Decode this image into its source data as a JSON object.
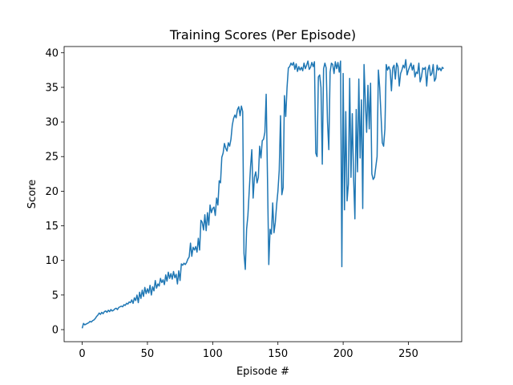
{
  "chart_data": {
    "type": "line",
    "title": "Training Scores (Per Episode)",
    "xlabel": "Episode #",
    "ylabel": "Score",
    "color": "#1f77b4",
    "xlim": [
      -13.85,
      290.85
    ],
    "ylim": [
      -1.74,
      40.9
    ],
    "xticks": [
      0,
      50,
      100,
      150,
      200,
      250
    ],
    "yticks": [
      0,
      5,
      10,
      15,
      20,
      25,
      30,
      35,
      40
    ],
    "grid": false,
    "x": [
      0,
      1,
      2,
      3,
      4,
      5,
      6,
      7,
      8,
      9,
      10,
      11,
      12,
      13,
      14,
      15,
      16,
      17,
      18,
      19,
      20,
      21,
      22,
      23,
      24,
      25,
      26,
      27,
      28,
      29,
      30,
      31,
      32,
      33,
      34,
      35,
      36,
      37,
      38,
      39,
      40,
      41,
      42,
      43,
      44,
      45,
      46,
      47,
      48,
      49,
      50,
      51,
      52,
      53,
      54,
      55,
      56,
      57,
      58,
      59,
      60,
      61,
      62,
      63,
      64,
      65,
      66,
      67,
      68,
      69,
      70,
      71,
      72,
      73,
      74,
      75,
      76,
      77,
      78,
      79,
      80,
      81,
      82,
      83,
      84,
      85,
      86,
      87,
      88,
      89,
      90,
      91,
      92,
      93,
      94,
      95,
      96,
      97,
      98,
      99,
      100,
      101,
      102,
      103,
      104,
      105,
      106,
      107,
      108,
      109,
      110,
      111,
      112,
      113,
      114,
      115,
      116,
      117,
      118,
      119,
      120,
      121,
      122,
      123,
      124,
      125,
      126,
      127,
      128,
      129,
      130,
      131,
      132,
      133,
      134,
      135,
      136,
      137,
      138,
      139,
      140,
      141,
      142,
      143,
      144,
      145,
      146,
      147,
      148,
      149,
      150,
      151,
      152,
      153,
      154,
      155,
      156,
      157,
      158,
      159,
      160,
      161,
      162,
      163,
      164,
      165,
      166,
      167,
      168,
      169,
      170,
      171,
      172,
      173,
      174,
      175,
      176,
      177,
      178,
      179,
      180,
      181,
      182,
      183,
      184,
      185,
      186,
      187,
      188,
      189,
      190,
      191,
      192,
      193,
      194,
      195,
      196,
      197,
      198,
      199,
      200,
      201,
      202,
      203,
      204,
      205,
      206,
      207,
      208,
      209,
      210,
      211,
      212,
      213,
      214,
      215,
      216,
      217,
      218,
      219,
      220,
      221,
      222,
      223,
      224,
      225,
      226,
      227,
      228,
      229,
      230,
      231,
      232,
      233,
      234,
      235,
      236,
      237,
      238,
      239,
      240,
      241,
      242,
      243,
      244,
      245,
      246,
      247,
      248,
      249,
      250,
      251,
      252,
      253,
      254,
      255,
      256,
      257,
      258,
      259,
      260,
      261,
      262,
      263,
      264,
      265,
      266,
      267,
      268,
      269,
      270,
      271,
      272,
      273,
      274,
      275,
      276,
      277
    ],
    "values": [
      0.2,
      0.9,
      0.7,
      0.8,
      0.9,
      1.0,
      1.2,
      1.1,
      1.3,
      1.4,
      1.6,
      1.9,
      2.1,
      2.4,
      2.2,
      2.5,
      2.3,
      2.6,
      2.7,
      2.5,
      2.8,
      2.6,
      2.9,
      2.7,
      2.8,
      3.0,
      3.1,
      2.9,
      3.2,
      3.3,
      3.4,
      3.3,
      3.6,
      3.5,
      3.8,
      3.7,
      4.0,
      3.9,
      4.3,
      3.8,
      4.6,
      4.2,
      5.0,
      3.9,
      5.4,
      4.5,
      5.7,
      4.8,
      6.1,
      5.2,
      5.9,
      5.3,
      6.4,
      5.0,
      6.2,
      5.6,
      7.1,
      6.0,
      6.6,
      6.3,
      7.4,
      6.8,
      7.2,
      6.5,
      7.9,
      7.0,
      8.3,
      7.4,
      8.1,
      7.3,
      8.4,
      7.5,
      8.0,
      6.6,
      8.5,
      7.1,
      9.5,
      9.3,
      9.6,
      9.4,
      9.7,
      10.2,
      10.5,
      12.5,
      10.6,
      11.9,
      11.5,
      12.0,
      11.2,
      13.2,
      11.5,
      15.8,
      15.5,
      14.4,
      16.6,
      14.3,
      16.9,
      15.1,
      18.0,
      16.9,
      17.5,
      17.7,
      16.5,
      19.0,
      18.0,
      21.5,
      21.2,
      24.9,
      25.5,
      26.9,
      26.2,
      25.8,
      27.0,
      26.5,
      27.5,
      29.5,
      30.5,
      31.0,
      30.6,
      31.8,
      32.2,
      30.9,
      32.3,
      31.5,
      11.0,
      8.7,
      14.5,
      16.5,
      20.0,
      23.5,
      26.0,
      19.0,
      22.0,
      22.8,
      21.2,
      22.0,
      26.5,
      24.8,
      27.3,
      27.5,
      28.5,
      34.0,
      22.0,
      9.4,
      14.5,
      13.8,
      18.3,
      14.0,
      15.5,
      18.0,
      20.0,
      23.0,
      30.9,
      19.5,
      20.5,
      33.8,
      30.8,
      35.0,
      37.8,
      38.0,
      38.5,
      38.2,
      38.6,
      37.6,
      38.4,
      37.3,
      38.0,
      37.5,
      37.9,
      37.4,
      38.5,
      37.7,
      38.2,
      38.8,
      37.6,
      37.9,
      38.6,
      38.0,
      38.7,
      25.5,
      25.0,
      36.5,
      36.8,
      35.0,
      23.9,
      37.7,
      38.5,
      37.8,
      30.0,
      26.0,
      37.2,
      38.5,
      38.3,
      37.0,
      38.7,
      37.7,
      38.6,
      37.2,
      38.8,
      9.1,
      37.0,
      17.3,
      31.5,
      18.6,
      21.0,
      36.3,
      22.0,
      31.2,
      22.0,
      16.0,
      31.8,
      22.8,
      36.2,
      24.8,
      33.2,
      17.5,
      38.3,
      33.0,
      28.5,
      35.3,
      29.0,
      35.6,
      22.5,
      21.7,
      22.0,
      23.5,
      25.0,
      37.5,
      35.0,
      31.0,
      27.0,
      26.5,
      29.0,
      38.3,
      37.5,
      38.0,
      37.5,
      34.5,
      37.8,
      38.2,
      36.2,
      38.5,
      38.0,
      35.2,
      37.0,
      37.5,
      38.2,
      37.8,
      39.0,
      36.8,
      37.5,
      38.0,
      38.5,
      37.5,
      38.2,
      36.5,
      37.2,
      37.0,
      38.5,
      35.8,
      36.5,
      37.8,
      37.6,
      37.9,
      35.2,
      37.5,
      38.2,
      36.7,
      37.0,
      38.3,
      35.9,
      36.3,
      38.2,
      37.5,
      37.8,
      37.4,
      37.9,
      37.7
    ]
  }
}
